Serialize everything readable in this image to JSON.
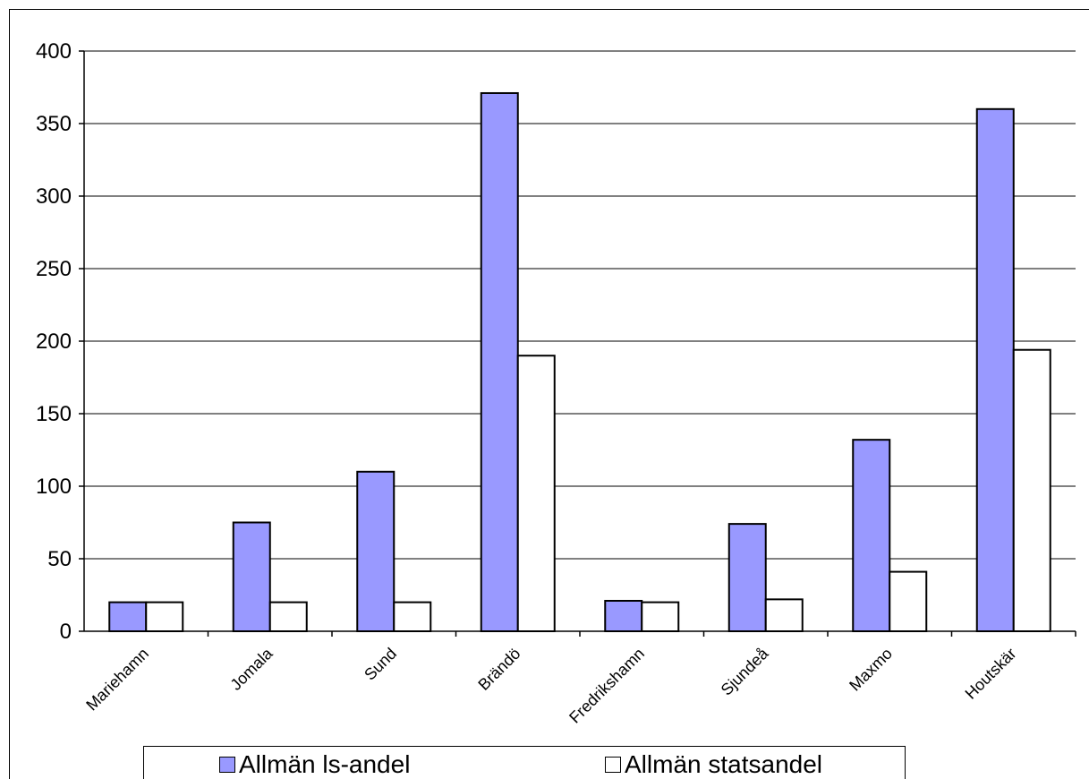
{
  "chart_data": {
    "type": "bar",
    "categories": [
      "Mariehamn",
      "Jomala",
      "Sund",
      "Brändö",
      "Fredrikshamn",
      "Sjundeå",
      "Maxmo",
      "Houtskär"
    ],
    "series": [
      {
        "name": "Allmän ls-andel",
        "values": [
          20,
          75,
          110,
          371,
          21,
          74,
          132,
          360
        ],
        "color": "#9999ff"
      },
      {
        "name": "Allmän statsandel",
        "values": [
          20,
          20,
          20,
          190,
          20,
          22,
          41,
          194
        ],
        "color": "#ffffff"
      }
    ],
    "yticks": [
      0,
      50,
      100,
      150,
      200,
      250,
      300,
      350,
      400
    ],
    "ylim": [
      0,
      400
    ],
    "grid": true,
    "legend_position": "bottom"
  }
}
